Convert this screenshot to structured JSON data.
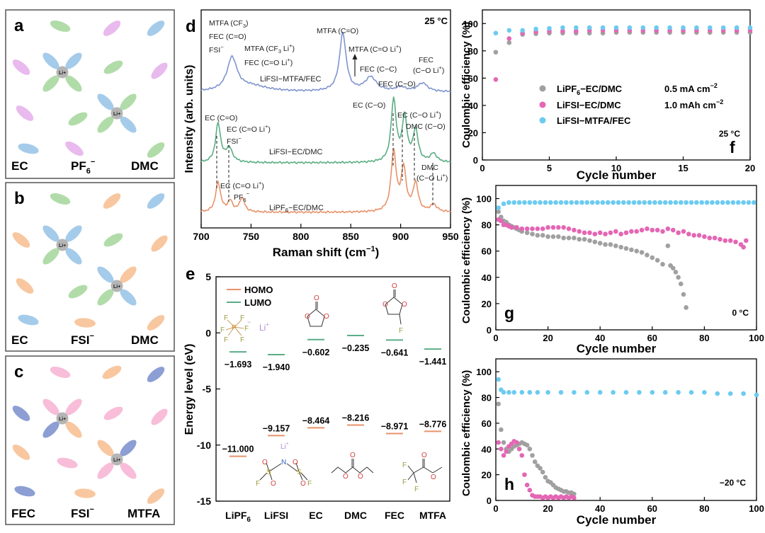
{
  "panel_a": {
    "letter": "a",
    "labels": [
      "EC",
      "PF",
      "6",
      "−",
      "DMC"
    ]
  },
  "panel_b": {
    "letter": "b",
    "labels": [
      "EC",
      "FSI",
      "−",
      "DMC"
    ]
  },
  "panel_c": {
    "letter": "c",
    "labels": [
      "FEC",
      "FSI",
      "−",
      "MTFA"
    ]
  },
  "li_label": "Li",
  "li_sup": "+",
  "colors": {
    "ec": "#9bc5e8",
    "dmc": "#a8d8a0",
    "pf6": "#e7b2ec",
    "fsi": "#f7c195",
    "fec": "#f7b6d5",
    "mtfa": "#7f94cf",
    "li": "#b5b5b5",
    "frame": "#555555"
  },
  "panel_d": {
    "letter": "d",
    "temp": "25 °C",
    "xlabel": "Raman shift (cm",
    "xlabel_sup": "−1",
    "xlabel_end": ")",
    "ylabel": "Intensity (arb. units)",
    "xticks": [
      "700",
      "750",
      "800",
      "850",
      "900",
      "950"
    ],
    "series_labels": [
      "LiFSI−MTFA/FEC",
      "LiFSI−EC/DMC",
      "LiPF",
      "6",
      "−EC/DMC"
    ],
    "ann": {
      "mtfa_cf3": "MTFA (CF",
      "mtfa_cf3_sub": "3",
      "mtfa_cf3_end": ")",
      "fec_co": "FEC (C=O)",
      "fsi": "FSI",
      "fsi_sup": "−",
      "mtfa_cf3li": "MTFA (CF",
      "mtfa_cf3li_sub": "3",
      "mtfa_cf3li_end": " Li",
      "plus": "+",
      "close": ")",
      "fec_coli": "FEC (C=O Li",
      "mtfa_co": "MTFA (C=O)",
      "mtfa_coli": "MTFA (C=O Li",
      "fec_cc": "FEC (C−C)",
      "fec_co2": "FEC (C−O)",
      "fec_top": "FEC",
      "fec_coli2": "(C−O Li",
      "ec_co": "EC (C=O)",
      "ec_coli": "EC (C=O Li",
      "ec_co2": "EC (C−O)",
      "ec_coli2": "EC (C−O Li",
      "dmc_co": "DMC (C−O)",
      "dmc_top": "DMC",
      "dmc_coli": "(C−O Li",
      "pf6": "PF",
      "pf6_sub": "6",
      "pf6_sup": "−"
    }
  },
  "panel_e": {
    "letter": "e",
    "ylabel": "Energy level (eV)",
    "yticks": [
      "5",
      "0",
      "-5",
      "-10",
      "-15"
    ],
    "legend": [
      "HOMO",
      "LUMO"
    ],
    "molecules": [
      "LiPF",
      "6",
      "LiFSI",
      "EC",
      "DMC",
      "FEC",
      "MTFA"
    ],
    "chart_data": {
      "type": "bar",
      "categories": [
        "LiPF6",
        "LiFSI",
        "EC",
        "DMC",
        "FEC",
        "MTFA"
      ],
      "series": [
        {
          "name": "HOMO",
          "values": [
            -11.0,
            -9.157,
            -8.464,
            -8.216,
            -8.971,
            -8.776
          ]
        },
        {
          "name": "LUMO",
          "values": [
            -1.693,
            -1.94,
            -0.602,
            -0.235,
            -0.641,
            -1.441
          ]
        }
      ],
      "value_labels": {
        "HOMO": [
          "−11.000",
          "−9.157",
          "−8.464",
          "−8.216",
          "−8.971",
          "−8.776"
        ],
        "LUMO": [
          "−1.693",
          "−1.940",
          "−0.602",
          "−0.235",
          "−0.641",
          "−1.441"
        ]
      },
      "ylim": [
        -15,
        5
      ],
      "ylabel": "Energy level (eV)"
    },
    "struct_text": {
      "li": "Li",
      "plus": "+",
      "F": "F",
      "P": "P",
      "S": "S",
      "N": "N",
      "O": "O"
    }
  },
  "panel_f": {
    "letter": "f",
    "temp": "25 °C",
    "xlabel": "Cycle number",
    "ylabel": "Coulombic efficiency (%)",
    "xticks": [
      "0",
      "5",
      "10",
      "15",
      "20"
    ],
    "yticks": [
      "0",
      "20",
      "40",
      "60",
      "80",
      "100"
    ],
    "legend": [
      "LiPF",
      "6",
      "−EC/DMC",
      "LiFSI−EC/DMC",
      "LiFSI−MTFA/FEC"
    ],
    "cond1": "0.5 mA cm",
    "cond1_sup": "−2",
    "cond2": "1.0 mAh cm",
    "cond2_sup": "−2",
    "chart_data": {
      "type": "scatter",
      "xlim": [
        0,
        20
      ],
      "ylim": [
        0,
        110
      ],
      "series": [
        {
          "name": "LiPF6−EC/DMC",
          "x": [
            1,
            2,
            3,
            4,
            5,
            6,
            7,
            8,
            9,
            10,
            11,
            12,
            13,
            14,
            15,
            16,
            17,
            18,
            19,
            20
          ],
          "y": [
            79,
            86,
            92,
            92.5,
            93,
            93,
            93,
            93,
            93,
            93.5,
            93.5,
            93.5,
            93.5,
            93.5,
            93.5,
            93.5,
            93.5,
            93.5,
            93.5,
            93.5
          ]
        },
        {
          "name": "LiFSI−EC/DMC",
          "x": [
            1,
            2,
            3,
            4,
            5,
            6,
            7,
            8,
            9,
            10,
            11,
            12,
            13,
            14,
            15,
            16,
            17,
            18,
            19,
            20
          ],
          "y": [
            59,
            89,
            93,
            94,
            94.5,
            94.5,
            94.5,
            95,
            95,
            95,
            95,
            95,
            95,
            95,
            95,
            95,
            95,
            95,
            95,
            95
          ]
        },
        {
          "name": "LiFSI−MTFA/FEC",
          "x": [
            1,
            2,
            3,
            4,
            5,
            6,
            7,
            8,
            9,
            10,
            11,
            12,
            13,
            14,
            15,
            16,
            17,
            18,
            19,
            20
          ],
          "y": [
            93,
            95,
            95,
            96,
            96.5,
            97,
            97,
            97,
            97,
            97,
            97,
            97,
            97,
            97,
            97,
            97,
            97,
            97,
            97,
            97
          ]
        }
      ]
    }
  },
  "panel_g": {
    "letter": "g",
    "temp": "0 °C",
    "xlabel": "Cycle number",
    "ylabel": "Coulombic efficiency (%)",
    "xticks": [
      "0",
      "20",
      "40",
      "60",
      "80",
      "100"
    ],
    "yticks": [
      "0",
      "20",
      "40",
      "60",
      "80",
      "100"
    ],
    "chart_data": {
      "type": "scatter",
      "xlim": [
        0,
        100
      ],
      "ylim": [
        0,
        110
      ],
      "series": [
        {
          "name": "LiPF6−EC/DMC",
          "x": [
            1,
            2,
            3,
            4,
            5,
            6,
            7,
            8,
            9,
            10,
            12,
            14,
            16,
            18,
            20,
            22,
            24,
            26,
            28,
            30,
            32,
            34,
            36,
            38,
            40,
            42,
            44,
            46,
            48,
            50,
            52,
            54,
            56,
            58,
            60,
            62,
            64,
            66,
            67,
            68,
            69,
            70,
            71,
            72,
            73
          ],
          "y": [
            90,
            86,
            83,
            82,
            80,
            79,
            78,
            77,
            76,
            75,
            74,
            73,
            72,
            72,
            71,
            71,
            71,
            70,
            70,
            70,
            69,
            69,
            68,
            67,
            66,
            65,
            65,
            64,
            63,
            62,
            61,
            60,
            59,
            57,
            55,
            53,
            50,
            64,
            49,
            47,
            44,
            40,
            35,
            27,
            17
          ]
        },
        {
          "name": "LiFSI−EC/DMC",
          "x": [
            1,
            2,
            3,
            4,
            5,
            6,
            8,
            10,
            12,
            14,
            16,
            18,
            20,
            22,
            24,
            26,
            28,
            30,
            32,
            34,
            36,
            38,
            40,
            42,
            44,
            46,
            48,
            50,
            52,
            54,
            56,
            58,
            60,
            62,
            64,
            66,
            68,
            70,
            72,
            74,
            76,
            78,
            80,
            82,
            84,
            86,
            88,
            90,
            92,
            94,
            95,
            96
          ],
          "y": [
            84,
            83,
            80,
            80,
            79,
            78,
            78,
            77,
            77,
            77,
            77,
            77,
            78,
            78,
            78,
            78,
            77,
            76,
            75,
            74,
            74,
            73,
            74,
            73,
            74,
            75,
            73,
            74,
            75,
            75,
            76,
            77,
            76,
            76,
            75,
            77,
            76,
            74,
            75,
            73,
            72,
            72,
            71,
            70,
            70,
            69,
            68,
            68,
            67,
            65,
            63,
            68
          ]
        },
        {
          "name": "LiFSI−MTFA/FEC",
          "x": [
            1,
            3,
            5,
            7,
            9,
            11,
            13,
            15,
            17,
            19,
            21,
            23,
            25,
            27,
            29,
            31,
            33,
            35,
            37,
            39,
            41,
            43,
            45,
            47,
            49,
            51,
            53,
            55,
            57,
            59,
            61,
            63,
            65,
            67,
            69,
            71,
            73,
            75,
            77,
            79,
            81,
            83,
            85,
            87,
            89,
            91,
            93,
            95,
            97,
            99
          ],
          "y": [
            93,
            96,
            97,
            97,
            97,
            97,
            97,
            97,
            97,
            97,
            97,
            97,
            97,
            97,
            97,
            97,
            97,
            97,
            97,
            97,
            97,
            97,
            97,
            97,
            97,
            97,
            97,
            97,
            97,
            97,
            97,
            97,
            97,
            97,
            97,
            97,
            97,
            97,
            97,
            97,
            97,
            97,
            97,
            97,
            97,
            97,
            97,
            97,
            97,
            97
          ]
        }
      ]
    }
  },
  "panel_h": {
    "letter": "h",
    "temp": "−20 °C",
    "xlabel": "Cycle number",
    "ylabel": "Coulombic efficiency (%)",
    "xticks": [
      "0",
      "20",
      "40",
      "60",
      "80",
      "100"
    ],
    "yticks": [
      "0",
      "20",
      "40",
      "60",
      "80",
      "100"
    ],
    "chart_data": {
      "type": "scatter",
      "xlim": [
        0,
        100
      ],
      "ylim": [
        0,
        110
      ],
      "series": [
        {
          "name": "LiPF6−EC/DMC",
          "x": [
            1,
            2,
            3,
            4,
            5,
            6,
            7,
            8,
            9,
            10,
            11,
            12,
            13,
            14,
            15,
            16,
            17,
            18,
            19,
            20,
            21,
            22,
            23,
            24,
            25,
            26,
            27,
            28,
            29,
            30
          ],
          "y": [
            75,
            55,
            45,
            40,
            38,
            40,
            42,
            43,
            44,
            45,
            44,
            43,
            40,
            35,
            30,
            27,
            25,
            22,
            18,
            15,
            14,
            12,
            10,
            9,
            8,
            7,
            7,
            6,
            6,
            5
          ]
        },
        {
          "name": "LiFSI−EC/DMC",
          "x": [
            1,
            2,
            3,
            4,
            5,
            6,
            7,
            8,
            9,
            10,
            11,
            12,
            13,
            14,
            15,
            16,
            17,
            18,
            19,
            20,
            21,
            22,
            23,
            24,
            25,
            26,
            27,
            28,
            29,
            30
          ],
          "y": [
            45,
            40,
            35,
            38,
            42,
            44,
            46,
            45,
            40,
            35,
            20,
            12,
            8,
            4,
            3,
            3,
            3,
            2,
            3,
            2,
            3,
            2,
            3,
            2,
            3,
            2,
            3,
            2,
            3,
            2
          ]
        },
        {
          "name": "LiFSI−MTFA/FEC",
          "x": [
            1,
            2,
            3,
            5,
            7,
            10,
            13,
            16,
            20,
            25,
            30,
            35,
            40,
            45,
            50,
            55,
            60,
            65,
            70,
            75,
            80,
            85,
            90,
            95,
            100
          ],
          "y": [
            94,
            86,
            84,
            84,
            84,
            84,
            84,
            84,
            84,
            84,
            84,
            84,
            84,
            84,
            84,
            84,
            84,
            84,
            84,
            84,
            84,
            83,
            83,
            83,
            82
          ]
        }
      ]
    }
  }
}
